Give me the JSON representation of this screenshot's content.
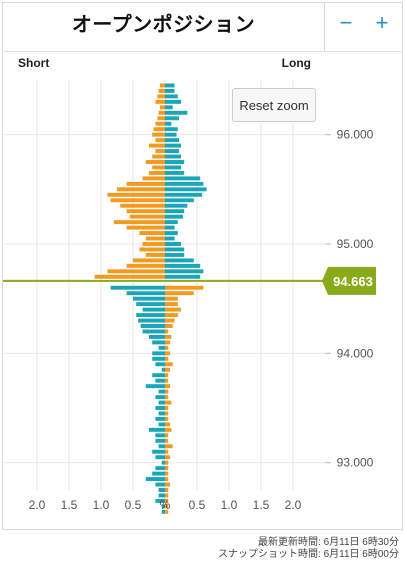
{
  "header": {
    "title": "オープンポジション",
    "zoom_out_label": "−",
    "zoom_in_label": "+"
  },
  "labels": {
    "short": "Short",
    "long": "Long",
    "reset_zoom": "Reset zoom"
  },
  "footer": {
    "updated": "最新更新時間: 6月11日 6時30分",
    "snapshot": "スナップショット時間: 6月11日 6時00分"
  },
  "colors": {
    "long": "#1aa6b8",
    "short": "#f29a1f",
    "current_price": "#8aab19",
    "grid": "#e6e6e6"
  },
  "chart_data": {
    "type": "bar",
    "orientation": "horizontal",
    "current_price": 94.663,
    "current_price_label": "94.663",
    "y_axis": {
      "min": 92.75,
      "max": 96.5,
      "ticks": [
        96.0,
        95.0,
        94.0,
        93.0
      ],
      "tick_labels": [
        "96.000",
        "95.000",
        "94.000",
        "93.000"
      ]
    },
    "x_axis": {
      "ticks": [
        -2.0,
        -1.5,
        -1.0,
        -0.5,
        0,
        0.5,
        1.0,
        1.5,
        2.0
      ],
      "tick_labels": [
        "2.0",
        "1.5",
        "1.0",
        "0.5",
        "%",
        "0.5",
        "1.0",
        "1.5",
        "2.0"
      ]
    },
    "bin_size": 0.05,
    "prices": [
      96.45,
      96.4,
      96.35,
      96.3,
      96.25,
      96.2,
      96.15,
      96.1,
      96.05,
      96.0,
      95.95,
      95.9,
      95.85,
      95.8,
      95.75,
      95.7,
      95.65,
      95.6,
      95.55,
      95.5,
      95.45,
      95.4,
      95.35,
      95.3,
      95.25,
      95.2,
      95.15,
      95.1,
      95.05,
      95.0,
      94.95,
      94.9,
      94.85,
      94.8,
      94.75,
      94.7,
      94.65,
      94.6,
      94.55,
      94.5,
      94.45,
      94.4,
      94.35,
      94.3,
      94.25,
      94.2,
      94.15,
      94.1,
      94.05,
      94.0,
      93.95,
      93.9,
      93.85,
      93.8,
      93.75,
      93.7,
      93.65,
      93.6,
      93.55,
      93.5,
      93.45,
      93.4,
      93.35,
      93.3,
      93.25,
      93.2,
      93.15,
      93.1,
      93.05,
      93.0,
      92.95,
      92.9,
      92.85,
      92.8
    ],
    "series": [
      {
        "name": "Long",
        "values": [
          0.15,
          0.15,
          0.2,
          0.25,
          0.12,
          0.35,
          0.22,
          0.1,
          0.2,
          0.18,
          0.22,
          0.25,
          0.22,
          0.25,
          0.3,
          0.25,
          0.3,
          0.55,
          0.6,
          0.65,
          0.58,
          0.45,
          0.35,
          0.3,
          0.28,
          0.2,
          0.15,
          0.2,
          0.15,
          0.25,
          0.3,
          0.3,
          0.45,
          0.55,
          0.6,
          0.55,
          0.0,
          0.0,
          0.0,
          0.0,
          0.0,
          0.0,
          0.0,
          0.0,
          0.0,
          0.0,
          0.0,
          0.0,
          0.0,
          0.0,
          0.0,
          0.0,
          0.0,
          0.0,
          0.0,
          0.0,
          0.0,
          0.0,
          0.0,
          0.0,
          0.0,
          0.0,
          0.0,
          0.0,
          0.0,
          0.0,
          0.0,
          0.0,
          0.0,
          0.0,
          0.0,
          0.0,
          0.0,
          0.0
        ]
      },
      {
        "name": "Short",
        "values": [
          0.08,
          0.1,
          0.12,
          0.15,
          0.08,
          0.1,
          0.12,
          0.15,
          0.18,
          0.2,
          0.15,
          0.25,
          0.15,
          0.2,
          0.3,
          0.2,
          0.25,
          0.35,
          0.6,
          0.75,
          0.9,
          0.85,
          0.7,
          0.6,
          0.55,
          0.8,
          0.6,
          0.4,
          0.3,
          0.35,
          0.4,
          0.3,
          0.5,
          0.6,
          0.9,
          1.1,
          0.0,
          0.0,
          0.0,
          0.0,
          0.0,
          0.0,
          0.0,
          0.0,
          0.0,
          0.0,
          0.0,
          0.0,
          0.0,
          0.0,
          0.0,
          0.0,
          0.0,
          0.0,
          0.0,
          0.0,
          0.0,
          0.0,
          0.0,
          0.0,
          0.0,
          0.0,
          0.0,
          0.0,
          0.0,
          0.0,
          0.0,
          0.0,
          0.0,
          0.0,
          0.0,
          0.0,
          0.0,
          0.0
        ]
      }
    ],
    "below_price": {
      "Long": [
        0.85,
        0.6,
        0.5,
        0.45,
        0.35,
        0.45,
        0.42,
        0.38,
        0.35,
        0.25,
        0.2,
        0.1,
        0.2,
        0.2,
        0.15,
        0.05,
        0.2,
        0.15,
        0.3,
        0.1,
        0.15,
        0.1,
        0.15,
        0.1,
        0.15,
        0.1,
        0.25,
        0.15,
        0.15,
        0.1,
        0.2,
        0.15,
        0.05,
        0.15,
        0.2,
        0.3,
        0.15,
        0.1,
        0.1,
        0.15,
        0.05,
        0.05
      ],
      "Short": [
        0.6,
        0.45,
        0.2,
        0.2,
        0.25,
        0.2,
        0.15,
        0.12,
        0.05,
        0.1,
        0.08,
        0.05,
        0.08,
        0.05,
        0.12,
        0.08,
        0.05,
        0.05,
        0.08,
        0.05,
        0.05,
        0.1,
        0.05,
        0.05,
        0.05,
        0.08,
        0.1,
        0.05,
        0.05,
        0.12,
        0.05,
        0.08,
        0.05,
        0.05,
        0.05,
        0.05,
        0.08,
        0.05,
        0.05,
        0.05,
        0.05,
        0.05
      ]
    }
  }
}
